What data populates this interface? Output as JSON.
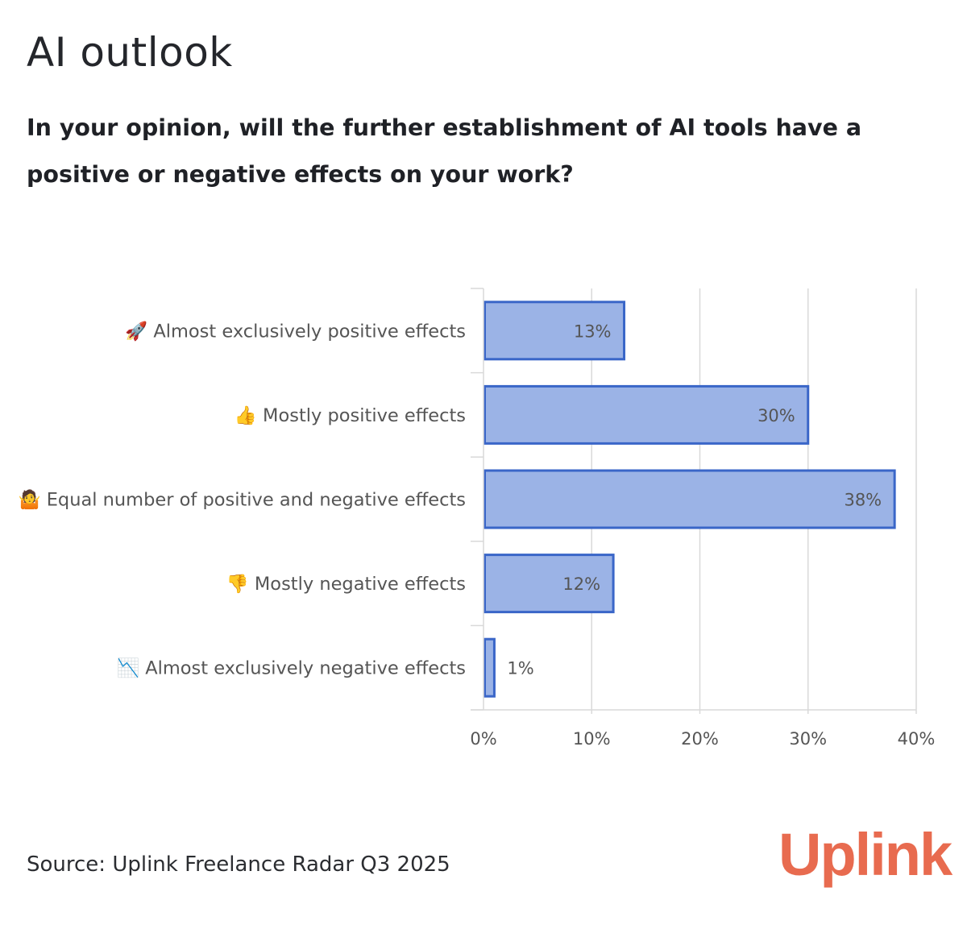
{
  "title": "AI outlook",
  "subtitle": "In your opinion, will the further establishment of AI tools have a positive or negative effects on your work?",
  "source": "Source: Uplink Freelance Radar Q3 2025",
  "logo_text": "Uplink",
  "colors": {
    "bar_fill": "#9bb3e6",
    "bar_stroke": "#3a66c8",
    "grid": "#d9d9d9",
    "label": "#555555",
    "logo": "#e86b4f"
  },
  "chart_data": {
    "type": "bar",
    "orientation": "horizontal",
    "categories": [
      "🚀 Almost exclusively positive effects",
      "👍 Mostly positive effects",
      "🤷 Equal number of positive and negative effects",
      "👎 Mostly negative effects",
      "📉 Almost exclusively negative effects"
    ],
    "values": [
      13,
      30,
      38,
      12,
      1
    ],
    "data_labels": [
      "13%",
      "30%",
      "38%",
      "12%",
      "1%"
    ],
    "xlim": [
      0,
      40
    ],
    "xticks": [
      0,
      10,
      20,
      30,
      40
    ],
    "xtick_labels": [
      "0%",
      "10%",
      "20%",
      "30%",
      "40%"
    ],
    "grid": true
  }
}
